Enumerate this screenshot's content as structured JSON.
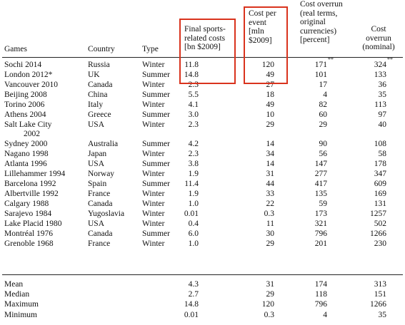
{
  "headers": {
    "games": "Games",
    "country": "Country",
    "type": "Type",
    "costs": [
      "Final sports-",
      "related costs",
      "[bn $2009]"
    ],
    "per_event": [
      "Cost per",
      "event",
      "[mln",
      "$2009]"
    ],
    "overrun_real": [
      "Cost overrun",
      "(real terms,",
      "original",
      "currencies)",
      "[percent]"
    ],
    "overrun_nominal": [
      "Cost",
      "overrun",
      "(nominal)"
    ]
  },
  "rows": [
    {
      "game": "Sochi 2014",
      "country": "Russia",
      "type": "Winter",
      "costs": "11.8",
      "per_event": "120",
      "overrun_real": "171",
      "overrun_real_sup": "**",
      "overrun_nominal": "324",
      "overrun_nominal_sup": "**"
    },
    {
      "game": "London 2012*",
      "country": "UK",
      "type": "Summer",
      "costs": "14.8",
      "per_event": "49",
      "overrun_real": "101",
      "overrun_nominal": "133"
    },
    {
      "game": "Vancouver 2010",
      "country": "Canada",
      "type": "Winter",
      "costs": "2.3",
      "per_event": "27",
      "overrun_real": "17",
      "overrun_nominal": "36"
    },
    {
      "game": "Beijing 2008",
      "country": "China",
      "type": "Summer",
      "costs": "5.5",
      "per_event": "18",
      "overrun_real": "4",
      "overrun_nominal": "35"
    },
    {
      "game": "Torino 2006",
      "country": "Italy",
      "type": "Winter",
      "costs": "4.1",
      "per_event": "49",
      "overrun_real": "82",
      "overrun_nominal": "113"
    },
    {
      "game": "Athens 2004",
      "country": "Greece",
      "type": "Summer",
      "costs": "3.0",
      "per_event": "10",
      "overrun_real": "60",
      "overrun_nominal": "97"
    },
    {
      "game": "Salt Lake City",
      "game_line2": "2002",
      "country": "USA",
      "type": "Winter",
      "costs": "2.3",
      "per_event": "29",
      "overrun_real": "29",
      "overrun_nominal": "40"
    },
    {
      "game": "Sydney 2000",
      "country": "Australia",
      "type": "Summer",
      "costs": "4.2",
      "per_event": "14",
      "overrun_real": "90",
      "overrun_nominal": "108"
    },
    {
      "game": "Nagano 1998",
      "country": "Japan",
      "type": "Winter",
      "costs": "2.3",
      "per_event": "34",
      "overrun_real": "56",
      "overrun_nominal": "58"
    },
    {
      "game": "Atlanta 1996",
      "country": "USA",
      "type": "Summer",
      "costs": "3.8",
      "per_event": "14",
      "overrun_real": "147",
      "overrun_nominal": "178"
    },
    {
      "game": "Lillehammer 1994",
      "country": "Norway",
      "type": "Winter",
      "costs": "1.9",
      "per_event": "31",
      "overrun_real": "277",
      "overrun_nominal": "347"
    },
    {
      "game": "Barcelona 1992",
      "country": "Spain",
      "type": "Summer",
      "costs": "11.4",
      "per_event": "44",
      "overrun_real": "417",
      "overrun_nominal": "609"
    },
    {
      "game": "Albertville 1992",
      "country": "France",
      "type": "Winter",
      "costs": "1.9",
      "per_event": "33",
      "overrun_real": "135",
      "overrun_nominal": "169"
    },
    {
      "game": "Calgary 1988",
      "country": "Canada",
      "type": "Winter",
      "costs": "1.0",
      "per_event": "22",
      "overrun_real": "59",
      "overrun_nominal": "131"
    },
    {
      "game": "Sarajevo 1984",
      "country": "Yugoslavia",
      "type": "Winter",
      "costs": "0.01",
      "per_event": "0.3",
      "overrun_real": "173",
      "overrun_nominal": "1257"
    },
    {
      "game": "Lake Placid 1980",
      "country": "USA",
      "type": "Winter",
      "costs": "0.4",
      "per_event": "11",
      "overrun_real": "321",
      "overrun_nominal": "502"
    },
    {
      "game": "Montréal 1976",
      "country": "Canada",
      "type": "Summer",
      "costs": "6.0",
      "per_event": "30",
      "overrun_real": "796",
      "overrun_nominal": "1266"
    },
    {
      "game": "Grenoble 1968",
      "country": "France",
      "type": "Winter",
      "costs": "1.0",
      "per_event": "29",
      "overrun_real": "201",
      "overrun_nominal": "230"
    }
  ],
  "summary": [
    {
      "label": "Mean",
      "costs": "4.3",
      "per_event": "31",
      "overrun_real": "174",
      "overrun_nominal": "313"
    },
    {
      "label": "Median",
      "costs": "2.7",
      "per_event": "29",
      "overrun_real": "118",
      "overrun_nominal": "151"
    },
    {
      "label": "Maximum",
      "costs": "14.8",
      "per_event": "120",
      "overrun_real": "796",
      "overrun_nominal": "1266"
    },
    {
      "label": "Minimum",
      "costs": "0.01",
      "per_event": "0.3",
      "overrun_real": "4",
      "overrun_nominal": "35"
    }
  ],
  "highlight_color": "#d9331d"
}
